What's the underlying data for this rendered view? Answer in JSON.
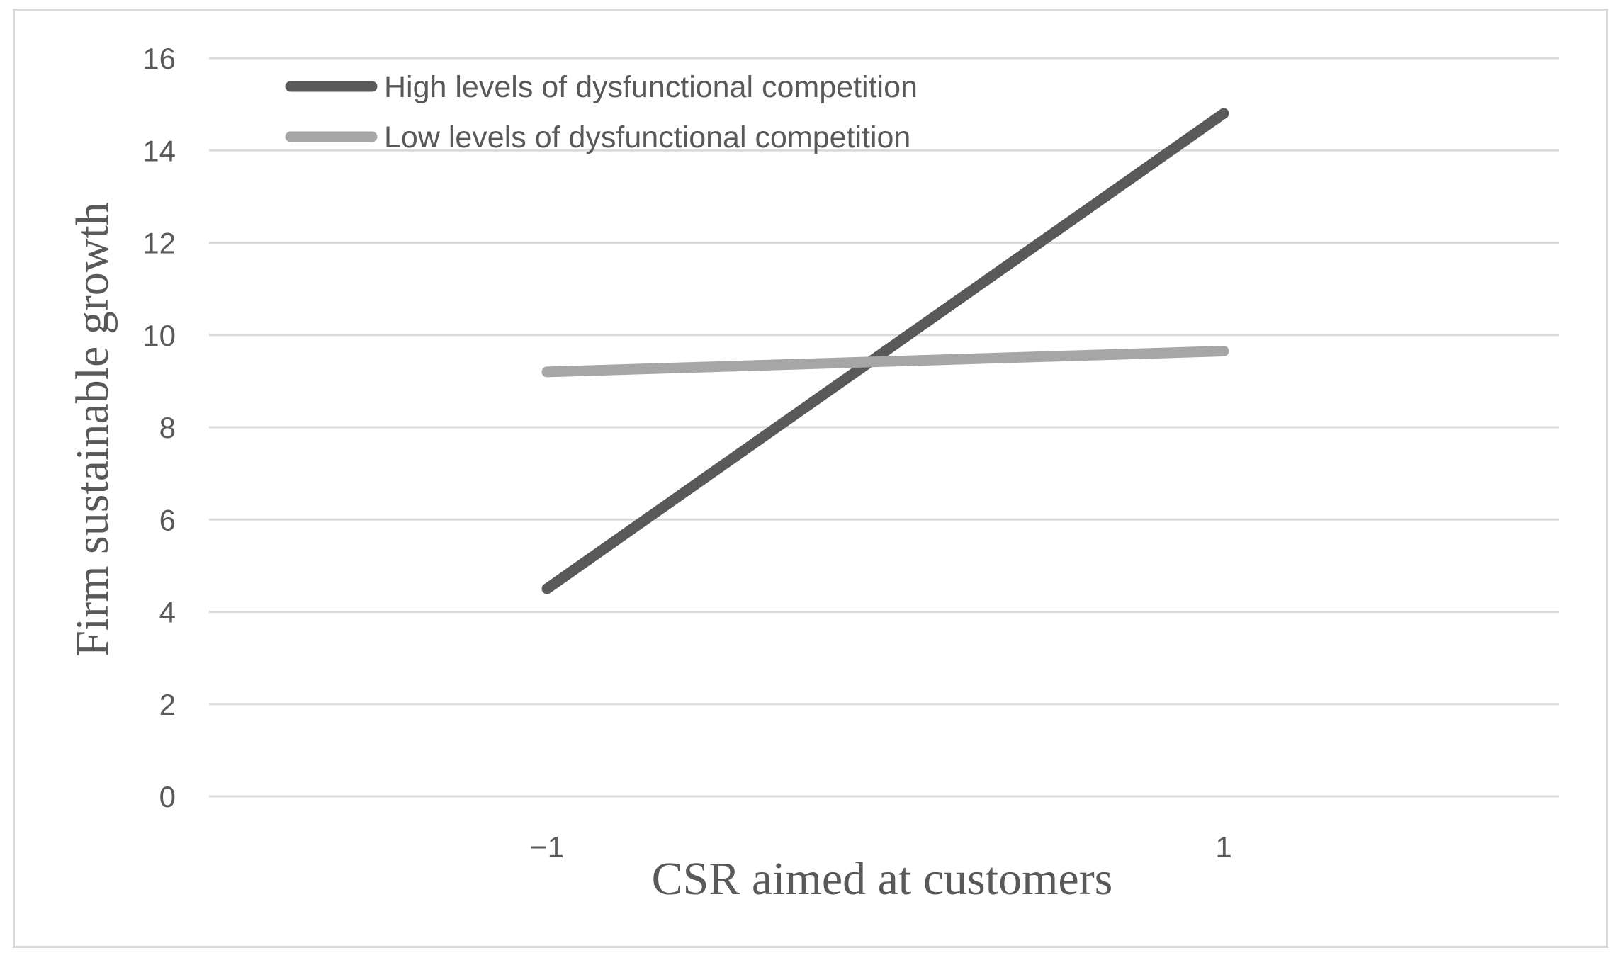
{
  "chart_data": {
    "type": "line",
    "title": "",
    "xlabel": "CSR aimed at customers",
    "ylabel": "Firm sustainable growth",
    "categories": [
      "−1",
      "1"
    ],
    "x": [
      -1,
      1
    ],
    "ylim": [
      0,
      16
    ],
    "yticks": [
      0,
      2,
      4,
      6,
      8,
      10,
      12,
      14,
      16
    ],
    "grid": true,
    "legend_position": "top-left",
    "series": [
      {
        "name": "High levels of dysfunctional competition",
        "values": [
          4.5,
          14.8
        ],
        "color": "#595959"
      },
      {
        "name": "Low levels of dysfunctional competition",
        "values": [
          9.2,
          9.65
        ],
        "color": "#a6a6a6"
      }
    ]
  }
}
